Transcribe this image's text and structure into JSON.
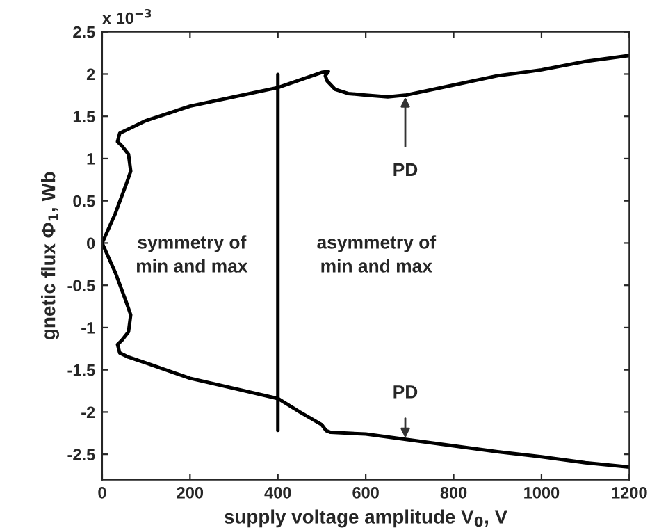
{
  "chart_data": {
    "type": "line",
    "xlabel": "supply voltage amplitude V$_{0}$, V",
    "ylabel": "gnetic flux Φ$_{1}$, Wb",
    "xlim": [
      0,
      1200
    ],
    "xticks": [
      0,
      200,
      400,
      600,
      800,
      1000,
      1200
    ],
    "ylim": [
      -2.8,
      2.5
    ],
    "yticks": [
      -2.5,
      -2,
      -1.5,
      -1,
      -0.5,
      0,
      0.5,
      1,
      1.5,
      2,
      2.5
    ],
    "grid": false,
    "legend": false,
    "series": [
      {
        "color": "#000000",
        "x": [
          0,
          30,
          55,
          65,
          60,
          45,
          35,
          40,
          60,
          100,
          200,
          300,
          400,
          500,
          515,
          508,
          512,
          530,
          560,
          600,
          650,
          690,
          800,
          900,
          1000,
          1100,
          1200
        ],
        "values": [
          0,
          0.35,
          0.7,
          0.85,
          1.05,
          1.15,
          1.2,
          1.3,
          1.35,
          1.45,
          1.62,
          1.73,
          1.84,
          2.02,
          2.03,
          1.98,
          1.92,
          1.82,
          1.77,
          1.75,
          1.73,
          1.75,
          1.87,
          1.98,
          2.05,
          2.15,
          2.22
        ]
      },
      {
        "color": "#000000",
        "x": [
          0,
          30,
          55,
          65,
          60,
          45,
          35,
          40,
          60,
          100,
          200,
          300,
          400,
          450,
          500,
          510,
          520,
          600,
          700,
          800,
          900,
          1000,
          1100,
          1200
        ],
        "values": [
          0,
          -0.35,
          -0.7,
          -0.85,
          -1.05,
          -1.15,
          -1.2,
          -1.3,
          -1.35,
          -1.42,
          -1.6,
          -1.72,
          -1.84,
          -2.0,
          -2.15,
          -2.22,
          -2.24,
          -2.26,
          -2.33,
          -2.4,
          -2.47,
          -2.53,
          -2.6,
          -2.65
        ]
      }
    ],
    "ref_lines": [
      {
        "axis": "x",
        "value": 400,
        "color": "#000000"
      }
    ],
    "annotations": [
      "x 10$^{−3}$",
      "symmetry of\nmin and max",
      "asymmetry of\nmin and max",
      {
        "text": "PD",
        "x": 690,
        "y": 1.75
      },
      {
        "text": "PD",
        "x": 690,
        "y": -2.33
      }
    ]
  }
}
